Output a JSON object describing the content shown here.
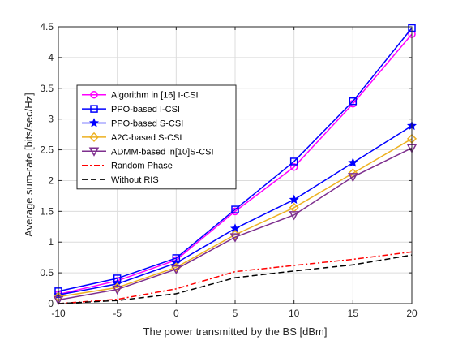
{
  "chart_data": {
    "type": "line",
    "title": "",
    "xlabel": "The power transmitted by the BS [dBm]",
    "ylabel": "Average sum-rate [bits/sec/Hz]",
    "xlim": [
      -10,
      20
    ],
    "ylim": [
      0,
      4.5
    ],
    "xticks": [
      -10,
      -5,
      0,
      5,
      10,
      15,
      20
    ],
    "yticks": [
      0,
      0.5,
      1,
      1.5,
      2,
      2.5,
      3,
      3.5,
      4,
      4.5
    ],
    "xtick_labels": [
      "-10",
      "-5",
      "0",
      "5",
      "10",
      "15",
      "20"
    ],
    "ytick_labels": [
      "0",
      "0.5",
      "1",
      "1.5",
      "2",
      "2.5",
      "3",
      "3.5",
      "4",
      "4.5"
    ],
    "grid": true,
    "legend_position": "upper-left",
    "x": [
      -10,
      -5,
      0,
      5,
      10,
      15,
      20
    ],
    "series": [
      {
        "name": "Algorithm in [16] I-CSI",
        "values": [
          0.15,
          0.37,
          0.71,
          1.5,
          2.22,
          3.25,
          4.38
        ],
        "color": "#ff00ff",
        "marker": "circle",
        "dash": "solid"
      },
      {
        "name": "PPO-based I-CSI",
        "values": [
          0.2,
          0.41,
          0.74,
          1.53,
          2.31,
          3.29,
          4.48
        ],
        "color": "#0000ff",
        "marker": "square",
        "dash": "solid"
      },
      {
        "name": "PPO-based S-CSI",
        "values": [
          0.14,
          0.32,
          0.66,
          1.22,
          1.69,
          2.29,
          2.89
        ],
        "color": "#0000ff",
        "marker": "star",
        "dash": "solid"
      },
      {
        "name": "A2C-based S-CSI",
        "values": [
          0.11,
          0.26,
          0.59,
          1.12,
          1.56,
          2.12,
          2.68
        ],
        "color": "#edb120",
        "marker": "diamond",
        "dash": "solid"
      },
      {
        "name": "ADMM-based in[10]S-CSI",
        "values": [
          0.06,
          0.23,
          0.56,
          1.08,
          1.44,
          2.06,
          2.53
        ],
        "color": "#7e2f8e",
        "marker": "triangle-down",
        "dash": "solid"
      },
      {
        "name": "Random Phase",
        "values": [
          0.0,
          0.07,
          0.24,
          0.52,
          0.62,
          0.72,
          0.84
        ],
        "color": "#ff0000",
        "marker": "none",
        "dash": "dashdot"
      },
      {
        "name": "Without RIS",
        "values": [
          0.0,
          0.05,
          0.16,
          0.42,
          0.53,
          0.63,
          0.79
        ],
        "color": "#000000",
        "marker": "none",
        "dash": "dashed"
      }
    ]
  }
}
